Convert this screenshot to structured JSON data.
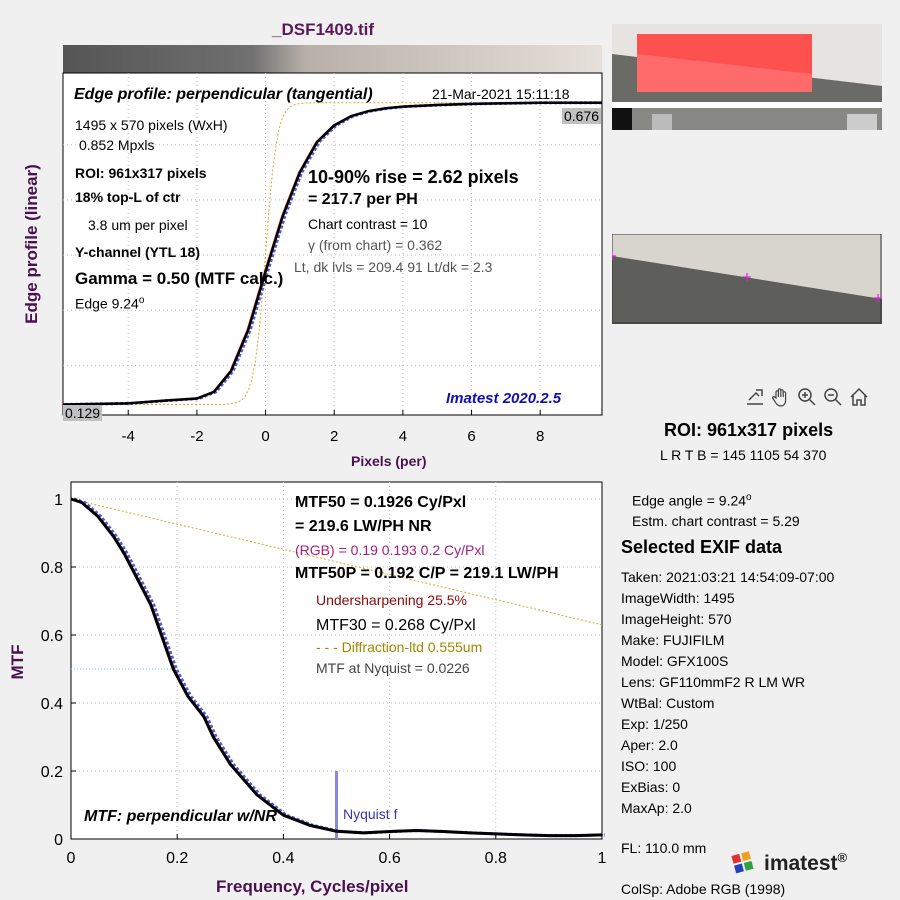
{
  "file_title": "_DSF1409.tif",
  "top_plot": {
    "title": "Edge profile: perpendicular (tangential)",
    "timestamp": "21-Mar-2021 15:11:18",
    "ylabel": "Edge profile (linear)",
    "xlabel": "Pixels (per)",
    "left_notes": [
      "1495 x 570 pixels (WxH)",
      "0.852 Mpxls",
      "ROI:  961x317 pixels",
      "18% top-L of ctr",
      "3.8 um per pixel",
      "Y-channel  (YTL 18)",
      "Gamma = 0.50 (MTF calc.)",
      "Edge   9.24"
    ],
    "degree_mark": "o",
    "rise_line1": "10-90% rise = 2.62 pixels",
    "rise_line2": "=  217.7 per PH",
    "chart_contrast": "Chart contrast = 10",
    "gamma_from_chart": "γ (from chart) = 0.362",
    "levels": "Lt, dk lvls = 209.4  91  Lt/dk = 2.3",
    "version": "Imatest 2020.2.5",
    "high_value_label": "0.676",
    "low_value_label": "0.129"
  },
  "bottom_plot": {
    "ylabel": "MTF",
    "xlabel": "Frequency, Cycles/pixel",
    "mtf50_line1": "MTF50 = 0.1926 Cy/Pxl",
    "mtf50_line2": "= 219.6 LW/PH  NR",
    "rgb_line": "(RGB) = 0.19  0.193  0.2 Cy/Pxl",
    "mtf50p": "MTF50P = 0.192 C/P = 219.1 LW/PH",
    "undersharpening": "Undersharpening 25.5%",
    "mtf30": "MTF30 = 0.268 Cy/Pxl",
    "diffraction": "- - - Diffraction-ltd  0.555um",
    "nyquist_mtf": "MTF at Nyquist = 0.0226",
    "plot_label": "MTF: perpendicular w/NR",
    "nyquist_label": "Nyquist f"
  },
  "sidebar": {
    "roi": "ROI:  961x317 pixels",
    "lrtb": "L R  T B = 145 1105  54 370",
    "edge_angle": "Edge angle = 9.24",
    "degree_mark": "o",
    "chart_contrast": "Estm. chart contrast = 5.29",
    "exif_title": "Selected EXIF data",
    "exif": [
      "Taken: 2021:03:21 14:54:09-07:00",
      "ImageWidth:  1495",
      "ImageHeight:  570",
      "Make:  FUJIFILM",
      "Model:  GFX100S",
      "Lens:   GF110mmF2 R LM WR",
      "WtBal:  Custom",
      "Exp:     1/250",
      "Aper:    2.0",
      "ISO:     100",
      "ExBias:  0",
      "MaxAp:  2.0"
    ],
    "fl": "FL:      110.0 mm",
    "colsp": "ColSp:  Adobe RGB (1998)",
    "logo_text": "imatest",
    "logo_mark": "®"
  },
  "toolbar_icons": [
    "export-icon",
    "pan-hand-icon",
    "zoom-in-icon",
    "zoom-out-icon",
    "home-icon"
  ],
  "colors": {
    "title": "#5a1a5a",
    "main_curve": "#000000",
    "red_curve": "#e03030",
    "blue_curve": "#4a5ad8",
    "diffraction": "#c8b020",
    "nyquist": "#8888dd",
    "version": "#1010b0",
    "rgb_text": "#a0207a",
    "under_text": "#8a0a0a",
    "diffr_text": "#a08800",
    "roi_fill": "#ff4040"
  },
  "chart_data": [
    {
      "type": "line",
      "title": "Edge profile: perpendicular (tangential)",
      "xlabel": "Pixels (per)",
      "ylabel": "Edge profile (linear)",
      "xlim": [
        -5.9,
        9.8
      ],
      "ylim": [
        0.129,
        0.676
      ],
      "x_ticks": [
        -4,
        -2,
        0,
        2,
        4,
        6,
        8
      ],
      "grid": true,
      "series": [
        {
          "x": [
            -5.9,
            -4,
            -3,
            -2.5,
            -2,
            -1.5,
            -1,
            -0.5,
            0,
            0.5,
            1,
            1.5,
            2,
            2.5,
            3,
            3.5,
            4,
            5,
            6,
            7,
            8,
            9,
            9.8
          ],
          "y": [
            0.129,
            0.131,
            0.136,
            0.138,
            0.14,
            0.152,
            0.19,
            0.265,
            0.37,
            0.47,
            0.55,
            0.605,
            0.635,
            0.652,
            0.661,
            0.666,
            0.669,
            0.672,
            0.674,
            0.675,
            0.676,
            0.676,
            0.676
          ]
        }
      ]
    },
    {
      "type": "line",
      "xlabel": "Frequency, Cycles/pixel",
      "ylabel": "MTF",
      "xlim": [
        0,
        1
      ],
      "ylim": [
        0,
        1.05
      ],
      "x_ticks": [
        0,
        0.2,
        0.4,
        0.6,
        0.8,
        1
      ],
      "y_ticks": [
        0,
        0.2,
        0.4,
        0.6,
        0.8,
        1
      ],
      "grid": true,
      "series": [
        {
          "x": [
            0,
            0.02,
            0.05,
            0.08,
            0.1,
            0.12,
            0.15,
            0.1926,
            0.22,
            0.25,
            0.268,
            0.3,
            0.35,
            0.4,
            0.45,
            0.5,
            0.55,
            0.6,
            0.65,
            0.7,
            0.75,
            0.8,
            0.85,
            0.9,
            0.95,
            1
          ],
          "y": [
            1,
            0.99,
            0.95,
            0.89,
            0.84,
            0.78,
            0.69,
            0.5,
            0.42,
            0.36,
            0.3,
            0.22,
            0.13,
            0.07,
            0.04,
            0.0226,
            0.018,
            0.022,
            0.025,
            0.022,
            0.018,
            0.015,
            0.012,
            0.01,
            0.01,
            0.012
          ]
        }
      ],
      "nyquist": 0.5
    }
  ]
}
